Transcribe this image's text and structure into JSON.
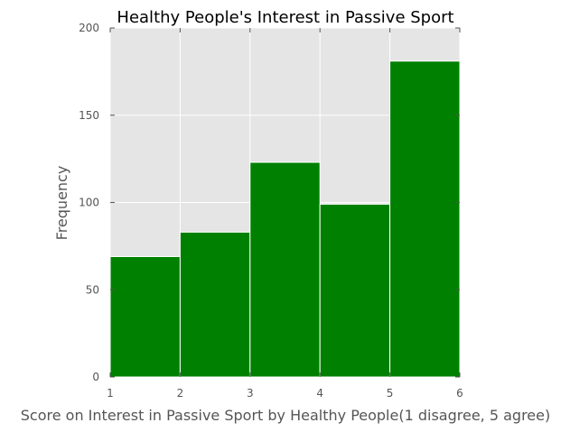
{
  "chart_data": {
    "type": "bar",
    "title": "Healthy People's Interest in Passive Sport",
    "xlabel": "Score on Interest in Passive Sport by Healthy People(1 disagree, 5 agree)",
    "ylabel": "Frequency",
    "bins": [
      {
        "start": 1,
        "end": 2,
        "value": 69
      },
      {
        "start": 2,
        "end": 3,
        "value": 83
      },
      {
        "start": 3,
        "end": 4,
        "value": 123
      },
      {
        "start": 4,
        "end": 5,
        "value": 99
      },
      {
        "start": 5,
        "end": 6,
        "value": 181
      }
    ],
    "xlim": [
      1,
      6
    ],
    "ylim": [
      0,
      200
    ],
    "x_ticks": [
      "1",
      "2",
      "3",
      "4",
      "5",
      "6"
    ],
    "y_ticks": [
      "0",
      "50",
      "100",
      "150",
      "200"
    ],
    "grid": true,
    "colors": {
      "bar": "#008000",
      "plot_background": "#e5e5e5",
      "grid": "#ffffff",
      "text": "#555555"
    }
  }
}
